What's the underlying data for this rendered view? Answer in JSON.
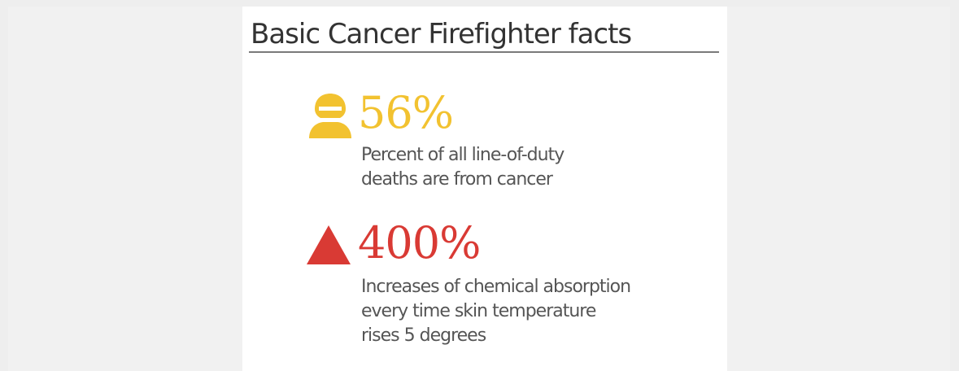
{
  "infographic": {
    "title": "Basic Cancer Firefighter facts",
    "facts": [
      {
        "icon": "firefighter-person-icon",
        "icon_color": "#f2c230",
        "value": "56%",
        "value_color": "#f2c230",
        "description_lines": [
          "Percent of all line-of-duty",
          "deaths are from cancer"
        ]
      },
      {
        "icon": "warning-triangle-icon",
        "icon_color": "#d93a34",
        "value": "400%",
        "value_color": "#d93a34",
        "description_lines": [
          "Increases of chemical absorption",
          "every time skin temperature",
          "rises 5 degrees"
        ]
      }
    ]
  }
}
